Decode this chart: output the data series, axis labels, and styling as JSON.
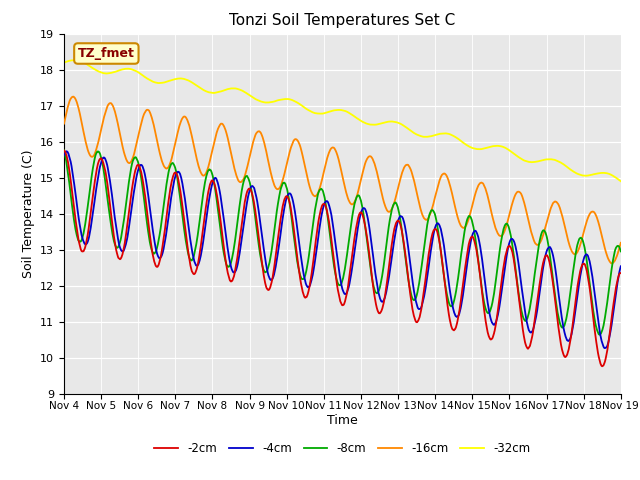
{
  "title": "Tonzi Soil Temperatures Set C",
  "xlabel": "Time",
  "ylabel": "Soil Temperature (C)",
  "ylim": [
    9.0,
    19.0
  ],
  "xlim_days": [
    0,
    15
  ],
  "xtick_labels": [
    "Nov 4",
    "Nov 5",
    "Nov 6",
    "Nov 7",
    "Nov 8",
    "Nov 9",
    "Nov 10",
    "Nov 11",
    "Nov 12",
    "Nov 13",
    "Nov 14",
    "Nov 15",
    "Nov 16",
    "Nov 17",
    "Nov 18",
    "Nov 19"
  ],
  "xtick_positions": [
    0,
    1,
    2,
    3,
    4,
    5,
    6,
    7,
    8,
    9,
    10,
    11,
    12,
    13,
    14,
    15
  ],
  "series_colors": {
    "-2cm": "#dd0000",
    "-4cm": "#0000cc",
    "-8cm": "#00aa00",
    "-16cm": "#ff8800",
    "-32cm": "#ffff00"
  },
  "legend_entries": [
    "-2cm",
    "-4cm",
    "-8cm",
    "-16cm",
    "-32cm"
  ],
  "annotation_text": "TZ_fmet",
  "annotation_box_color": "#ffffcc",
  "annotation_box_edge": "#cc8800",
  "annotation_text_color": "#880000",
  "plot_bg": "#e8e8e8",
  "fig_bg": "#ffffff"
}
